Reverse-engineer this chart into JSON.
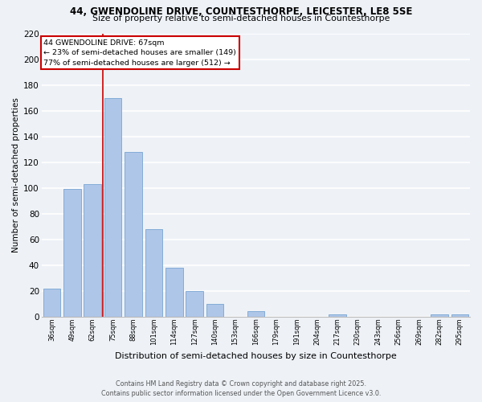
{
  "title1": "44, GWENDOLINE DRIVE, COUNTESTHORPE, LEICESTER, LE8 5SE",
  "title2": "Size of property relative to semi-detached houses in Countesthorpe",
  "xlabel": "Distribution of semi-detached houses by size in Countesthorpe",
  "ylabel": "Number of semi-detached properties",
  "bins": [
    "36sqm",
    "49sqm",
    "62sqm",
    "75sqm",
    "88sqm",
    "101sqm",
    "114sqm",
    "127sqm",
    "140sqm",
    "153sqm",
    "166sqm",
    "179sqm",
    "191sqm",
    "204sqm",
    "217sqm",
    "230sqm",
    "243sqm",
    "256sqm",
    "269sqm",
    "282sqm",
    "295sqm"
  ],
  "values": [
    22,
    99,
    103,
    170,
    128,
    68,
    38,
    20,
    10,
    0,
    4,
    0,
    0,
    0,
    2,
    0,
    0,
    0,
    0,
    2,
    2
  ],
  "bar_color": "#aec6e8",
  "bar_edge_color": "#6699cc",
  "red_line_x": 2.5,
  "annotation_title": "44 GWENDOLINE DRIVE: 67sqm",
  "annotation_smaller": "← 23% of semi-detached houses are smaller (149)",
  "annotation_larger": "77% of semi-detached houses are larger (512) →",
  "footnote1": "Contains HM Land Registry data © Crown copyright and database right 2025.",
  "footnote2": "Contains public sector information licensed under the Open Government Licence v3.0.",
  "ylim": [
    0,
    220
  ],
  "yticks": [
    0,
    20,
    40,
    60,
    80,
    100,
    120,
    140,
    160,
    180,
    200,
    220
  ],
  "bg_color": "#eef2f7",
  "grid_color": "#ffffff",
  "annotation_box_color": "#ffffff",
  "annotation_box_edge": "#cc0000",
  "red_line_color": "#cc0000"
}
